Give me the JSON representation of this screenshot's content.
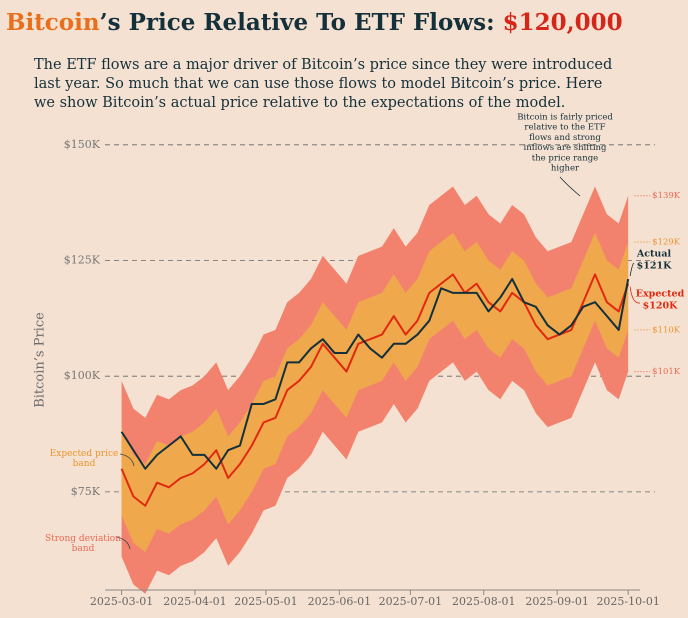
{
  "chart_data": {
    "type": "line",
    "title": [
      "Bitcoin",
      "’s Price Relative To ETF Flows: ",
      "$120,000"
    ],
    "subtitle": [
      "The ETF flows are a major driver of Bitcoin’s price since they were introduced",
      "last year. So much that we can use those flows to model Bitcoin’s price. Here",
      "we show Bitcoin’s actual price relative to the expectations of the model."
    ],
    "y_label": "Bitcoin’s Price",
    "annotation": [
      "Bitcoin is fairly priced",
      "relative to the ETF",
      "flows and strong",
      "inflows are shifting",
      "the price range",
      "higher"
    ],
    "x": [
      "2025-03-01",
      "2025-03-06",
      "2025-03-11",
      "2025-03-16",
      "2025-03-21",
      "2025-03-26",
      "2025-03-31",
      "2025-04-05",
      "2025-04-10",
      "2025-04-15",
      "2025-04-20",
      "2025-04-25",
      "2025-04-30",
      "2025-05-05",
      "2025-05-10",
      "2025-05-15",
      "2025-05-20",
      "2025-05-25",
      "2025-05-30",
      "2025-06-04",
      "2025-06-09",
      "2025-06-14",
      "2025-06-19",
      "2025-06-24",
      "2025-06-29",
      "2025-07-04",
      "2025-07-09",
      "2025-07-14",
      "2025-07-19",
      "2025-07-24",
      "2025-07-29",
      "2025-08-03",
      "2025-08-08",
      "2025-08-13",
      "2025-08-18",
      "2025-08-23",
      "2025-08-28",
      "2025-09-02",
      "2025-09-07",
      "2025-09-12",
      "2025-09-17",
      "2025-09-22",
      "2025-09-27",
      "2025-10-01"
    ],
    "xlim": [
      "2025-02-22",
      "2025-10-06"
    ],
    "xticks": [
      "2025-03-01",
      "2025-04-01",
      "2025-05-01",
      "2025-06-01",
      "2025-07-01",
      "2025-08-01",
      "2025-09-01",
      "2025-10-01"
    ],
    "ylim": [
      53800,
      153200
    ],
    "yticks": [
      {
        "value": 75000,
        "label": "$75K"
      },
      {
        "value": 100000,
        "label": "$100K"
      },
      {
        "value": 125000,
        "label": "$125K"
      },
      {
        "value": 150000,
        "label": "$150K"
      }
    ],
    "grid": true,
    "bands": [
      {
        "name": "Strong deviation band",
        "color": "#f2826e",
        "lower": [
          61000,
          55000,
          53000,
          58000,
          57000,
          59000,
          60000,
          62000,
          65000,
          59000,
          62000,
          66000,
          71000,
          72000,
          78000,
          80000,
          83000,
          88000,
          85000,
          82000,
          88000,
          89000,
          90000,
          94000,
          90000,
          93000,
          99000,
          101000,
          103000,
          99000,
          101000,
          97000,
          95000,
          99000,
          97000,
          92000,
          89000,
          90000,
          91000,
          97000,
          103000,
          97000,
          95000,
          101000
        ],
        "upper": [
          99000,
          93000,
          91000,
          96000,
          95000,
          97000,
          98000,
          100000,
          103000,
          97000,
          100000,
          104000,
          109000,
          110000,
          116000,
          118000,
          121000,
          126000,
          123000,
          120000,
          126000,
          127000,
          128000,
          132000,
          128000,
          131000,
          137000,
          139000,
          141000,
          137000,
          139000,
          135000,
          133000,
          137000,
          135000,
          130000,
          127000,
          128000,
          129000,
          135000,
          141000,
          135000,
          133000,
          139000
        ],
        "end_value_labels": {
          "lower": "$101K",
          "upper": "$139K"
        }
      },
      {
        "name": "Expected price band",
        "color": "#efa94c",
        "lower": [
          70000,
          64000,
          62000,
          67000,
          66000,
          68000,
          69000,
          71000,
          74000,
          68000,
          71000,
          75000,
          80000,
          81000,
          87000,
          89000,
          92000,
          97000,
          94000,
          91000,
          97000,
          98000,
          99000,
          103000,
          99000,
          102000,
          108000,
          110000,
          112000,
          108000,
          110000,
          106000,
          104000,
          108000,
          106000,
          101000,
          98000,
          99000,
          100000,
          106000,
          112000,
          106000,
          104000,
          110000
        ],
        "upper": [
          89000,
          83000,
          81000,
          86000,
          85000,
          87000,
          88000,
          90000,
          93000,
          87000,
          90000,
          94000,
          99000,
          100000,
          106000,
          108000,
          111000,
          116000,
          113000,
          110000,
          116000,
          117000,
          118000,
          122000,
          118000,
          121000,
          127000,
          129000,
          131000,
          127000,
          129000,
          125000,
          123000,
          127000,
          125000,
          120000,
          117000,
          118000,
          119000,
          125000,
          131000,
          125000,
          123000,
          129000
        ],
        "end_value_labels": {
          "lower": "$110K",
          "upper": "$129K"
        }
      }
    ],
    "series": [
      {
        "name": "Expected",
        "color": "#e0290f",
        "end_value_label": "$120K",
        "values": [
          80000,
          74000,
          72000,
          77000,
          76000,
          78000,
          79000,
          81000,
          84000,
          78000,
          81000,
          85000,
          90000,
          91000,
          97000,
          99000,
          102000,
          107000,
          104000,
          101000,
          107000,
          108000,
          109000,
          113000,
          109000,
          112000,
          118000,
          120000,
          122000,
          118000,
          120000,
          116000,
          114000,
          118000,
          116000,
          111000,
          108000,
          109000,
          110000,
          116000,
          122000,
          116000,
          114000,
          120000
        ]
      },
      {
        "name": "Actual",
        "color": "#14303a",
        "end_value_label": "$121K",
        "values": [
          88000,
          84000,
          80000,
          83000,
          85000,
          87000,
          83000,
          83000,
          80000,
          84000,
          85000,
          94000,
          94000,
          95000,
          103000,
          103000,
          106000,
          108000,
          105000,
          105000,
          109000,
          106000,
          104000,
          107000,
          107000,
          109000,
          112000,
          119000,
          118000,
          118000,
          118000,
          114000,
          117000,
          121000,
          116000,
          115000,
          111000,
          109000,
          111000,
          115000,
          116000,
          113000,
          110000,
          121000
        ]
      }
    ]
  }
}
